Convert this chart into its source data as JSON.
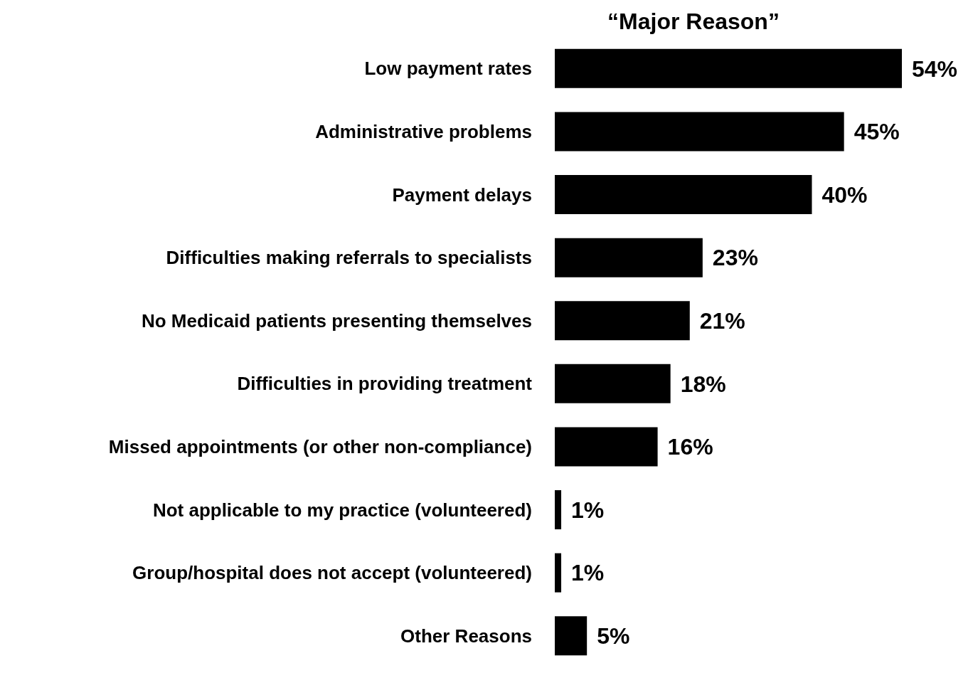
{
  "chart_data": {
    "type": "bar",
    "orientation": "horizontal",
    "title": "“Major Reason”",
    "categories": [
      "Low payment rates",
      "Administrative problems",
      "Payment delays",
      "Difficulties making referrals to specialists",
      "No Medicaid patients presenting themselves",
      "Difficulties in providing treatment",
      "Missed appointments (or other non-compliance)",
      "Not applicable to my practice (volunteered)",
      "Group/hospital does not accept (volunteered)",
      "Other Reasons"
    ],
    "values": [
      54,
      45,
      40,
      23,
      21,
      18,
      16,
      1,
      1,
      5
    ],
    "value_labels": [
      "54%",
      "45%",
      "40%",
      "23%",
      "21%",
      "18%",
      "16%",
      "1%",
      "1%",
      "5%"
    ],
    "color": "#000000",
    "grid": false,
    "legend": false
  }
}
